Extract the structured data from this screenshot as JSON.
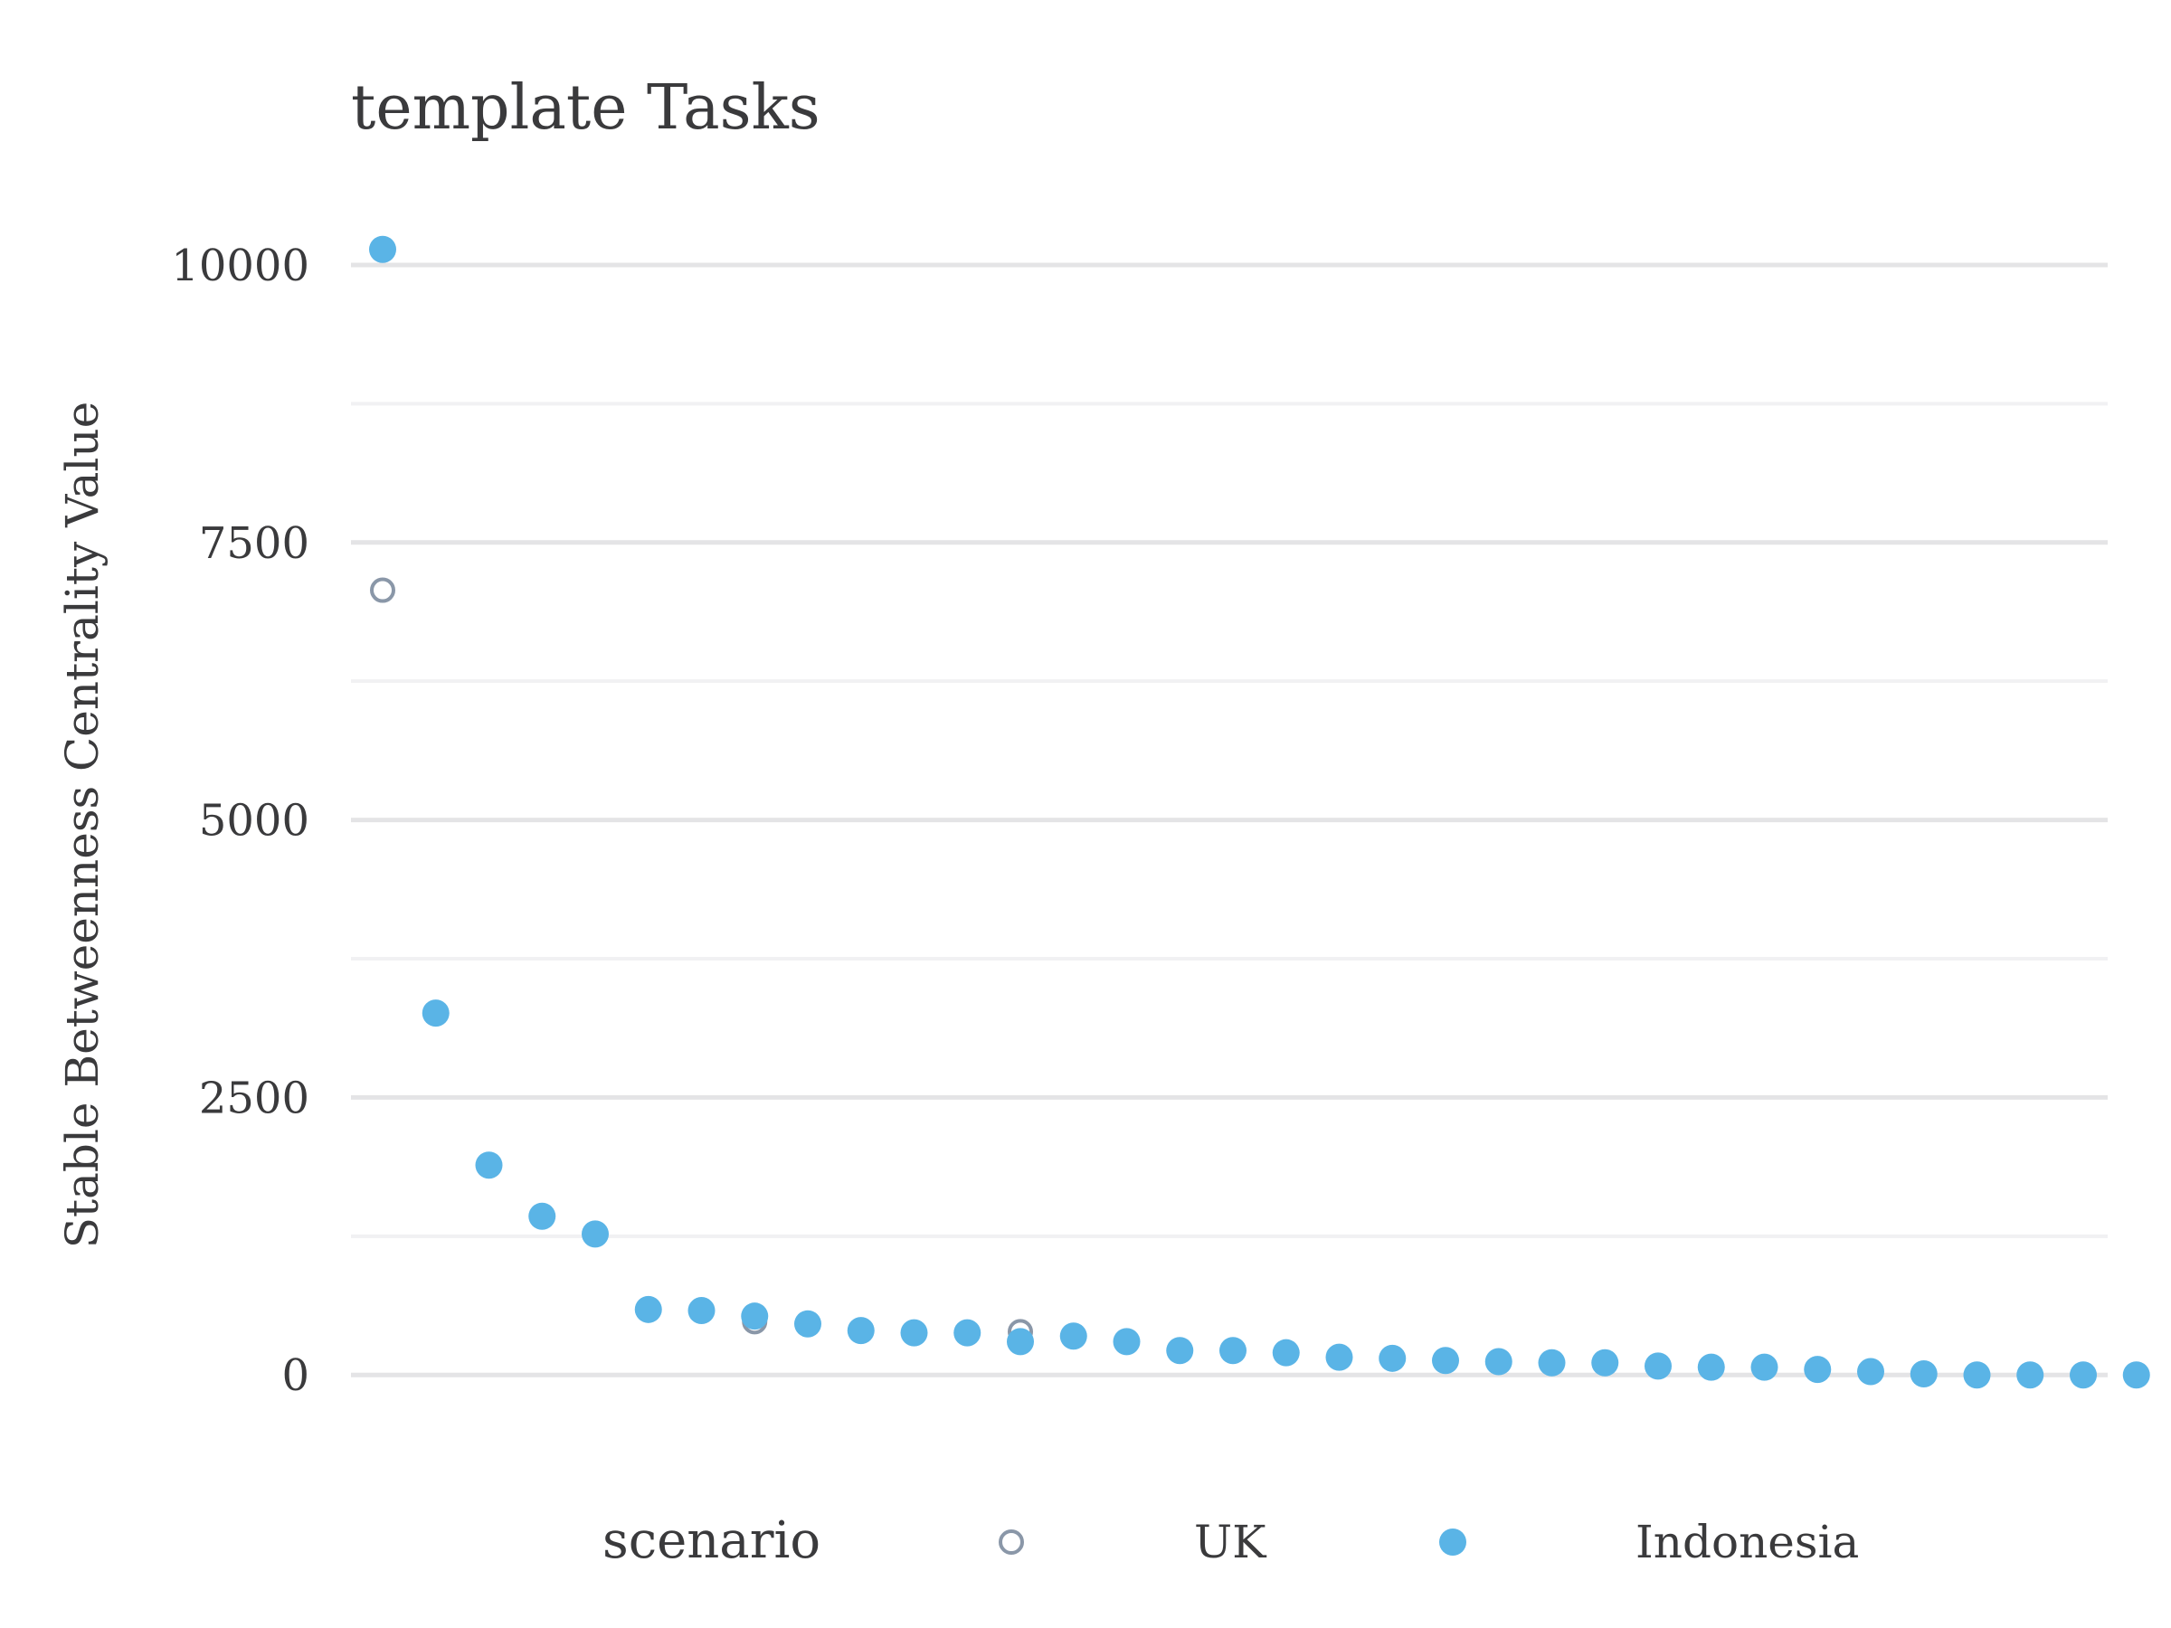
{
  "chart_data": {
    "type": "scatter",
    "title": "template Tasks",
    "xlabel": "",
    "ylabel": "Stable Betweenness Centrality Value",
    "ylim": [
      -650,
      10350
    ],
    "yticks": [
      0,
      2500,
      5000,
      7500,
      10000
    ],
    "ytick_labels": [
      "0",
      "2500",
      "5000",
      "7500",
      "10000"
    ],
    "x_ticks_visible": false,
    "grid": true,
    "legend": {
      "title": "scenario",
      "position": "bottom",
      "entries": [
        "UK",
        "Indonesia"
      ]
    },
    "series": [
      {
        "name": "UK",
        "marker": "open-circle",
        "color": "#8a97a8",
        "x": [
          1,
          8,
          13
        ],
        "values": [
          7070,
          480,
          390
        ]
      },
      {
        "name": "Indonesia",
        "marker": "filled-circle",
        "color": "#5ab4e6",
        "x": [
          1,
          2,
          3,
          4,
          5,
          6,
          7,
          8,
          9,
          10,
          11,
          12,
          13,
          14,
          15,
          16,
          17,
          18,
          19,
          20,
          21,
          22,
          23,
          24,
          25,
          26,
          27,
          28,
          29,
          30,
          31,
          32,
          33,
          34
        ],
        "values": [
          10140,
          3260,
          1890,
          1430,
          1270,
          590,
          580,
          530,
          460,
          400,
          380,
          380,
          300,
          350,
          300,
          220,
          220,
          200,
          160,
          150,
          130,
          120,
          110,
          110,
          80,
          70,
          70,
          50,
          30,
          10,
          0,
          0,
          0,
          0
        ]
      }
    ]
  },
  "colors": {
    "uk": "#8a97a8",
    "indonesia": "#5ab4e6",
    "text": "#3a3a3c",
    "grid_major": "#e4e4e6",
    "grid_minor": "#f1f1f3"
  }
}
